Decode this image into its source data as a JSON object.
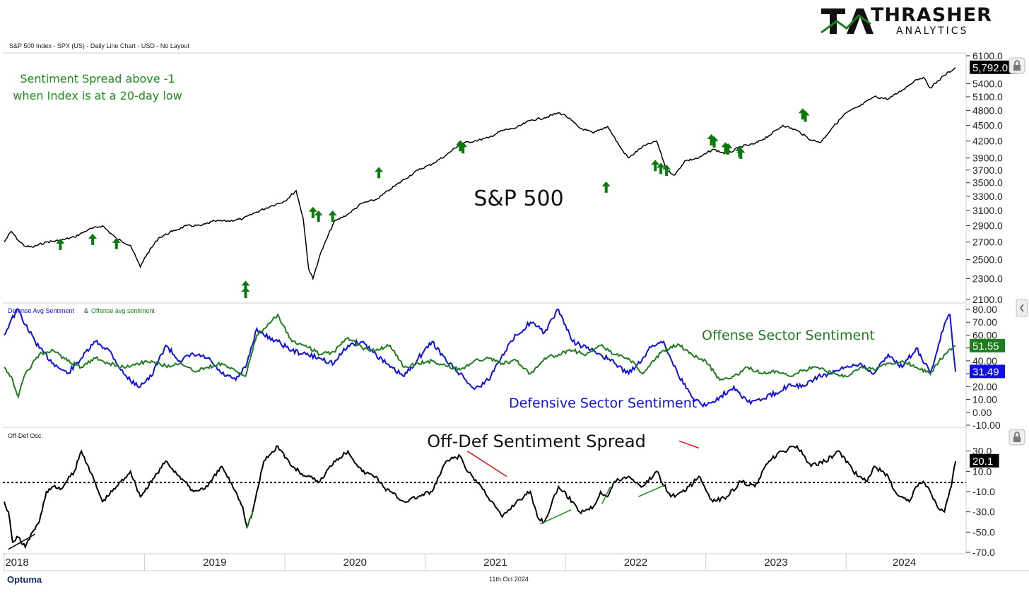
{
  "header": {
    "brand_name": "THRASHER",
    "brand_sub": "ANALYTICS",
    "chart_header": "S&P 500 Index - SPX (US) - Daily Line Chart - USD - No Layout"
  },
  "footer": {
    "brand": "Optuma",
    "date": "11th Oct 2024"
  },
  "colors": {
    "spx_line": "#000000",
    "signal_arrow": "#0a7a0a",
    "offense": "#1e7d1e",
    "defense": "#1010e0",
    "osc_line": "#000000",
    "trend_green": "#1e8a1e",
    "trend_red": "#e01010",
    "trend_black": "#000000"
  },
  "chart_data": [
    {
      "type": "line",
      "title": "S&P 500",
      "annotation": [
        "Sentiment Spread above -1",
        "when Index is at a 20-day low"
      ],
      "x_axis_labels": [
        "2018",
        "2019",
        "2020",
        "2021",
        "2022",
        "2023",
        "2024"
      ],
      "ylim": [
        2100,
        6100
      ],
      "scale": "log",
      "y_ticks": [
        "6100.0",
        "5400.0",
        "5100.0",
        "4800.0",
        "4500.0",
        "4200.0",
        "3900.0",
        "3700.0",
        "3500.0",
        "3300.0",
        "3100.0",
        "2900.0",
        "2700.0",
        "2500.0",
        "2300.0",
        "2100.0"
      ],
      "last_value": "5,792.0",
      "series": [
        {
          "x": [
            2018.0,
            2018.05,
            2018.1,
            2018.15,
            2018.2,
            2018.3,
            2018.4,
            2018.5,
            2018.6,
            2018.7,
            2018.8,
            2018.9,
            2018.97,
            2019.0,
            2019.1,
            2019.2,
            2019.3,
            2019.4,
            2019.5,
            2019.6,
            2019.7,
            2019.8,
            2019.9,
            2020.0,
            2020.08,
            2020.13,
            2020.17,
            2020.2,
            2020.25,
            2020.35,
            2020.45,
            2020.55,
            2020.65,
            2020.75,
            2020.85,
            2020.95,
            2021.05,
            2021.15,
            2021.25,
            2021.35,
            2021.45,
            2021.55,
            2021.65,
            2021.75,
            2021.85,
            2021.95,
            2022.0,
            2022.1,
            2022.2,
            2022.3,
            2022.4,
            2022.45,
            2022.55,
            2022.65,
            2022.72,
            2022.78,
            2022.85,
            2022.95,
            2023.05,
            2023.15,
            2023.25,
            2023.35,
            2023.45,
            2023.55,
            2023.65,
            2023.75,
            2023.82,
            2023.9,
            2024.0,
            2024.1,
            2024.2,
            2024.3,
            2024.4,
            2024.5,
            2024.55,
            2024.6,
            2024.7,
            2024.78
          ],
          "values": [
            2700,
            2830,
            2720,
            2650,
            2640,
            2700,
            2720,
            2760,
            2850,
            2900,
            2740,
            2660,
            2420,
            2520,
            2750,
            2830,
            2900,
            2900,
            2960,
            2960,
            2990,
            3080,
            3160,
            3230,
            3380,
            3000,
            2400,
            2300,
            2550,
            2950,
            3050,
            3200,
            3250,
            3400,
            3550,
            3700,
            3800,
            3950,
            4150,
            4200,
            4260,
            4400,
            4450,
            4600,
            4650,
            4750,
            4700,
            4450,
            4350,
            4480,
            4050,
            3900,
            4100,
            4200,
            3700,
            3620,
            3850,
            3900,
            4050,
            3970,
            4100,
            4150,
            4300,
            4500,
            4400,
            4220,
            4180,
            4450,
            4750,
            4900,
            5100,
            5050,
            5250,
            5500,
            5550,
            5300,
            5600,
            5792
          ]
        }
      ],
      "signals": [
        {
          "x": 2018.4,
          "y": 2740
        },
        {
          "x": 2018.63,
          "y": 2800
        },
        {
          "x": 2018.8,
          "y": 2750
        },
        {
          "x": 2019.72,
          "y": 2280
        },
        {
          "x": 2019.72,
          "y": 2220
        },
        {
          "x": 2020.2,
          "y": 3150
        },
        {
          "x": 2020.24,
          "y": 3100
        },
        {
          "x": 2020.34,
          "y": 3100
        },
        {
          "x": 2020.67,
          "y": 3750
        },
        {
          "x": 2021.25,
          "y": 4220
        },
        {
          "x": 2021.27,
          "y": 4180
        },
        {
          "x": 2022.29,
          "y": 3520
        },
        {
          "x": 2022.64,
          "y": 3870
        },
        {
          "x": 2022.68,
          "y": 3820
        },
        {
          "x": 2022.72,
          "y": 3790
        },
        {
          "x": 2023.04,
          "y": 4330
        },
        {
          "x": 2023.06,
          "y": 4290
        },
        {
          "x": 2023.14,
          "y": 4180
        },
        {
          "x": 2023.16,
          "y": 4160
        },
        {
          "x": 2023.24,
          "y": 4110
        },
        {
          "x": 2023.25,
          "y": 4080
        },
        {
          "x": 2023.69,
          "y": 4850
        },
        {
          "x": 2023.71,
          "y": 4800
        }
      ]
    },
    {
      "type": "line",
      "title": "",
      "legend": [
        "Defense Avg Sentiment",
        "Offense avg sentiment"
      ],
      "x_axis_labels": [
        "2018",
        "2019",
        "2020",
        "2021",
        "2022",
        "2023",
        "2024"
      ],
      "ylim": [
        -10,
        80
      ],
      "y_ticks": [
        "80.00",
        "70.00",
        "60.00",
        "50.00",
        "40.00",
        "30.00",
        "20.00",
        "10.00",
        "0.00",
        "-10.00"
      ],
      "annotations": [
        "Offense Sector Sentiment",
        "Defensive Sector Sentiment"
      ],
      "series": [
        {
          "name": "Offense avg sentiment",
          "last_value": "51.55",
          "x": [
            2018.0,
            2018.05,
            2018.1,
            2018.15,
            2018.25,
            2018.35,
            2018.45,
            2018.55,
            2018.65,
            2018.75,
            2018.85,
            2018.95,
            2019.05,
            2019.15,
            2019.25,
            2019.35,
            2019.45,
            2019.55,
            2019.65,
            2019.72,
            2019.8,
            2019.85,
            2019.95,
            2020.05,
            2020.15,
            2020.25,
            2020.35,
            2020.45,
            2020.55,
            2020.65,
            2020.75,
            2020.85,
            2020.95,
            2021.05,
            2021.15,
            2021.25,
            2021.35,
            2021.45,
            2021.55,
            2021.65,
            2021.75,
            2021.85,
            2021.95,
            2022.05,
            2022.15,
            2022.25,
            2022.35,
            2022.45,
            2022.55,
            2022.62,
            2022.7,
            2022.8,
            2022.9,
            2023.0,
            2023.1,
            2023.2,
            2023.3,
            2023.4,
            2023.5,
            2023.6,
            2023.7,
            2023.8,
            2023.9,
            2024.0,
            2024.1,
            2024.2,
            2024.3,
            2024.4,
            2024.5,
            2024.6,
            2024.7,
            2024.78
          ],
          "values": [
            35,
            28,
            12,
            30,
            45,
            48,
            40,
            35,
            42,
            38,
            35,
            38,
            40,
            36,
            38,
            32,
            35,
            38,
            32,
            28,
            60,
            65,
            76,
            55,
            52,
            45,
            47,
            58,
            50,
            48,
            52,
            35,
            38,
            40,
            36,
            33,
            40,
            42,
            38,
            40,
            30,
            42,
            45,
            48,
            45,
            52,
            45,
            42,
            30,
            40,
            48,
            53,
            45,
            40,
            25,
            28,
            35,
            30,
            32,
            28,
            33,
            35,
            30,
            28,
            35,
            33,
            38,
            40,
            35,
            30,
            45,
            51.55
          ]
        },
        {
          "name": "Defense Avg Sentiment",
          "last_value": "31.49",
          "x": [
            2018.0,
            2018.05,
            2018.1,
            2018.15,
            2018.25,
            2018.35,
            2018.45,
            2018.55,
            2018.65,
            2018.75,
            2018.85,
            2018.95,
            2019.05,
            2019.15,
            2019.25,
            2019.35,
            2019.45,
            2019.55,
            2019.65,
            2019.72,
            2019.8,
            2019.85,
            2019.95,
            2020.05,
            2020.15,
            2020.25,
            2020.35,
            2020.45,
            2020.55,
            2020.65,
            2020.75,
            2020.85,
            2020.95,
            2021.05,
            2021.15,
            2021.25,
            2021.35,
            2021.45,
            2021.55,
            2021.65,
            2021.75,
            2021.85,
            2021.95,
            2022.05,
            2022.15,
            2022.25,
            2022.35,
            2022.45,
            2022.55,
            2022.62,
            2022.7,
            2022.8,
            2022.9,
            2023.0,
            2023.1,
            2023.2,
            2023.3,
            2023.4,
            2023.5,
            2023.6,
            2023.7,
            2023.8,
            2023.9,
            2024.0,
            2024.1,
            2024.2,
            2024.3,
            2024.4,
            2024.5,
            2024.6,
            2024.7,
            2024.74,
            2024.78
          ],
          "values": [
            60,
            72,
            80,
            68,
            50,
            38,
            30,
            42,
            55,
            48,
            30,
            20,
            28,
            52,
            40,
            45,
            42,
            30,
            25,
            35,
            65,
            60,
            55,
            48,
            45,
            42,
            38,
            52,
            55,
            45,
            35,
            28,
            42,
            55,
            40,
            30,
            18,
            25,
            45,
            60,
            70,
            62,
            80,
            55,
            50,
            45,
            38,
            30,
            42,
            52,
            55,
            30,
            12,
            5,
            12,
            20,
            8,
            10,
            15,
            22,
            20,
            28,
            30,
            35,
            38,
            30,
            45,
            35,
            50,
            30,
            68,
            76,
            31.49
          ]
        }
      ]
    },
    {
      "type": "line",
      "title": "Off-Def Sentiment Spread",
      "legend": [
        "Off-Def Osc."
      ],
      "x_axis_labels": [
        "2018",
        "2019",
        "2020",
        "2021",
        "2022",
        "2023",
        "2024"
      ],
      "ylim": [
        -70,
        50
      ],
      "y_ticks": [
        "30.0",
        "10.0",
        "-10.0",
        "-30.0",
        "-50.0",
        "-70.0"
      ],
      "reference_line": -1,
      "last_value": "20.1",
      "series": [
        {
          "name": "Off-Def Osc.",
          "x": [
            2018.0,
            2018.03,
            2018.06,
            2018.1,
            2018.15,
            2018.2,
            2018.25,
            2018.3,
            2018.35,
            2018.4,
            2018.5,
            2018.55,
            2018.6,
            2018.7,
            2018.8,
            2018.9,
            2018.97,
            2019.05,
            2019.15,
            2019.25,
            2019.35,
            2019.45,
            2019.55,
            2019.65,
            2019.7,
            2019.73,
            2019.77,
            2019.85,
            2019.95,
            2020.05,
            2020.15,
            2020.25,
            2020.35,
            2020.45,
            2020.55,
            2020.65,
            2020.7,
            2020.75,
            2020.85,
            2020.95,
            2021.05,
            2021.15,
            2021.25,
            2021.3,
            2021.4,
            2021.5,
            2021.55,
            2021.65,
            2021.75,
            2021.8,
            2021.85,
            2021.95,
            2022.05,
            2022.1,
            2022.2,
            2022.25,
            2022.3,
            2022.35,
            2022.45,
            2022.55,
            2022.65,
            2022.75,
            2022.85,
            2022.95,
            2023.05,
            2023.15,
            2023.25,
            2023.35,
            2023.45,
            2023.55,
            2023.65,
            2023.75,
            2023.85,
            2023.95,
            2024.05,
            2024.1,
            2024.15,
            2024.2,
            2024.25,
            2024.3,
            2024.35,
            2024.4,
            2024.45,
            2024.5,
            2024.55,
            2024.6,
            2024.65,
            2024.7,
            2024.75,
            2024.78
          ],
          "values": [
            -20,
            -30,
            -60,
            -55,
            -65,
            -50,
            -40,
            -10,
            -5,
            -8,
            10,
            30,
            15,
            -20,
            -5,
            10,
            -15,
            0,
            20,
            5,
            -10,
            -5,
            15,
            -10,
            -25,
            -45,
            -30,
            20,
            35,
            15,
            5,
            0,
            20,
            30,
            10,
            5,
            -5,
            -10,
            -20,
            -15,
            -10,
            20,
            25,
            10,
            -5,
            -25,
            -35,
            -20,
            -10,
            -35,
            -40,
            -5,
            -20,
            -30,
            -25,
            -10,
            -15,
            0,
            5,
            -5,
            10,
            -15,
            -10,
            5,
            -20,
            -15,
            0,
            -5,
            20,
            30,
            35,
            15,
            20,
            30,
            10,
            5,
            0,
            15,
            10,
            5,
            -10,
            -15,
            -20,
            -5,
            0,
            -10,
            -25,
            -30,
            -5,
            20.1
          ]
        }
      ],
      "trendlines": [
        {
          "color": "black",
          "from": [
            2018.03,
            -67
          ],
          "to": [
            2018.22,
            -52
          ]
        },
        {
          "color": "green",
          "from": [
            2019.73,
            -45
          ],
          "to": [
            2019.77,
            -30
          ]
        },
        {
          "color": "red",
          "from": [
            2021.3,
            30
          ],
          "to": [
            2021.58,
            5
          ]
        },
        {
          "color": "green",
          "from": [
            2021.82,
            -42
          ],
          "to": [
            2022.04,
            -28
          ]
        },
        {
          "color": "green",
          "from": [
            2022.26,
            -22
          ],
          "to": [
            2022.32,
            -5
          ]
        },
        {
          "color": "green",
          "from": [
            2022.52,
            -15
          ],
          "to": [
            2022.7,
            -4
          ]
        },
        {
          "color": "red",
          "from": [
            2022.81,
            40
          ],
          "to": [
            2022.95,
            33
          ]
        }
      ]
    }
  ]
}
